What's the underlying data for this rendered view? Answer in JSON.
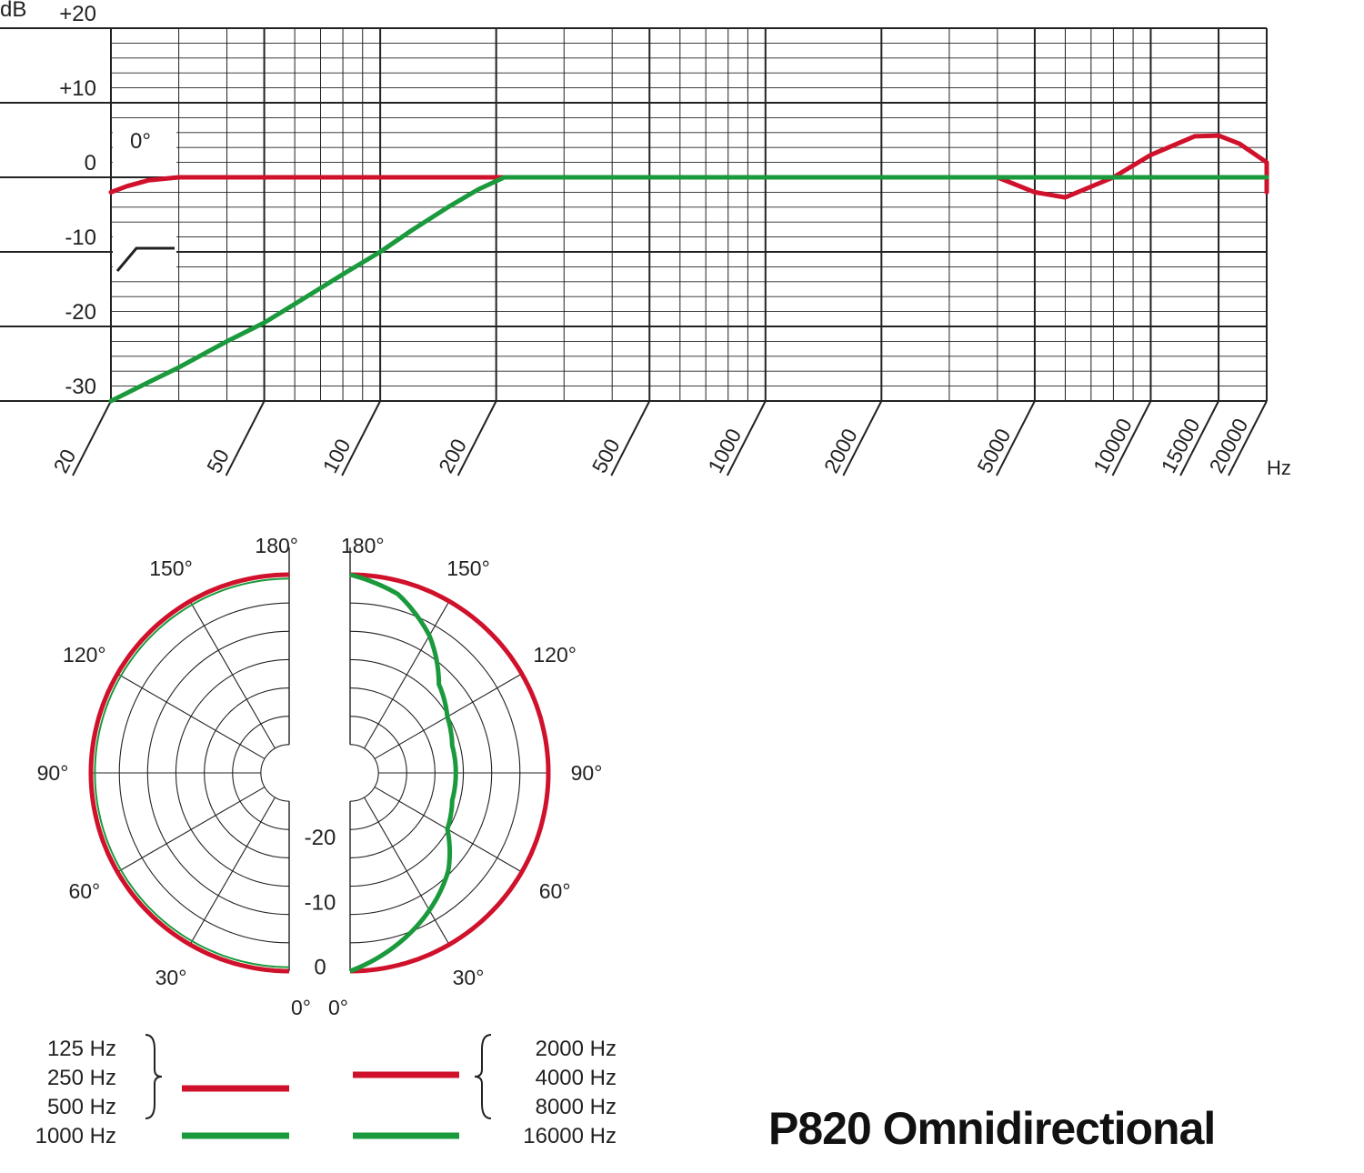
{
  "colors": {
    "low_band": "#d0112b",
    "high_band": "#1a9a3c",
    "grid": "#222222"
  },
  "chart_data": [
    {
      "type": "line",
      "ylabel": "dB",
      "xlabel": "Hz",
      "xscale": "log",
      "xlim": [
        20,
        20000
      ],
      "ylim": [
        -30,
        20
      ],
      "ytick_labels": [
        "+20",
        "+10",
        "0",
        "-10",
        "-20",
        "-30"
      ],
      "ytick_values": [
        20,
        10,
        0,
        -10,
        -20,
        -30
      ],
      "xtick_labels": [
        "20",
        "50",
        "100",
        "200",
        "500",
        "1000",
        "2000",
        "5000",
        "10000",
        "15000",
        "20000"
      ],
      "xtick_values": [
        20,
        50,
        100,
        200,
        500,
        1000,
        2000,
        5000,
        10000,
        15000,
        20000
      ],
      "minor_x_ticks": [
        30,
        40,
        60,
        70,
        80,
        90,
        300,
        400,
        600,
        700,
        800,
        900,
        3000,
        4000,
        6000,
        7000,
        8000,
        9000
      ],
      "grid": true,
      "annotation_angle": "0°",
      "series": [
        {
          "color": "#d0112b",
          "points": [
            [
              20,
              -2
            ],
            [
              22,
              -1.2
            ],
            [
              25,
              -0.4
            ],
            [
              30,
              0
            ],
            [
              200,
              0
            ],
            [
              1000,
              0
            ],
            [
              4000,
              0
            ],
            [
              5000,
              -2
            ],
            [
              6000,
              -2.7
            ],
            [
              8000,
              0
            ],
            [
              10000,
              3
            ],
            [
              13000,
              5.5
            ],
            [
              15000,
              5.6
            ],
            [
              17000,
              4.5
            ],
            [
              20000,
              2
            ],
            [
              20000,
              -2
            ]
          ]
        },
        {
          "color": "#1a9a3c",
          "points": [
            [
              20,
              -30
            ],
            [
              25,
              -27.5
            ],
            [
              30,
              -25.5
            ],
            [
              40,
              -22
            ],
            [
              50,
              -19.5
            ],
            [
              60,
              -17
            ],
            [
              80,
              -13
            ],
            [
              100,
              -10
            ],
            [
              120,
              -7.2
            ],
            [
              150,
              -4
            ],
            [
              180,
              -1.6
            ],
            [
              210,
              0
            ],
            [
              20000,
              0
            ]
          ]
        }
      ]
    },
    {
      "type": "polar",
      "panel": "left",
      "angle_labels": [
        "180°",
        "150°",
        "120°",
        "90°",
        "60°",
        "30°",
        "0°"
      ],
      "radial_labels": [
        "-20",
        "-10",
        "0"
      ],
      "series": [
        {
          "color": "#d0112b",
          "name_lines": [
            "125 Hz",
            "250 Hz",
            "500 Hz"
          ],
          "response_db": "0 at all angles"
        },
        {
          "color": "#1a9a3c",
          "name_lines": [
            "1000 Hz"
          ],
          "response_db": "approx 0 at all angles"
        }
      ]
    },
    {
      "type": "polar",
      "panel": "right",
      "angle_labels": [
        "180°",
        "150°",
        "120°",
        "90°",
        "60°",
        "30°",
        "0°"
      ],
      "series": [
        {
          "color": "#d0112b",
          "name_lines": [
            "2000 Hz",
            "4000 Hz",
            "8000 Hz"
          ],
          "response_db": "0 at all angles"
        },
        {
          "color": "#1a9a3c",
          "name_lines": [
            "16000 Hz"
          ],
          "points_deg_db": [
            [
              0,
              0
            ],
            [
              15,
              -3
            ],
            [
              30,
              -6
            ],
            [
              45,
              -9
            ],
            [
              60,
              -13
            ],
            [
              75,
              -14
            ],
            [
              90,
              -14
            ],
            [
              105,
              -14
            ],
            [
              120,
              -13
            ],
            [
              135,
              -11
            ],
            [
              150,
              -6
            ],
            [
              165,
              -2
            ],
            [
              180,
              0
            ]
          ]
        }
      ]
    }
  ],
  "title": "P820 Omnidirectional"
}
